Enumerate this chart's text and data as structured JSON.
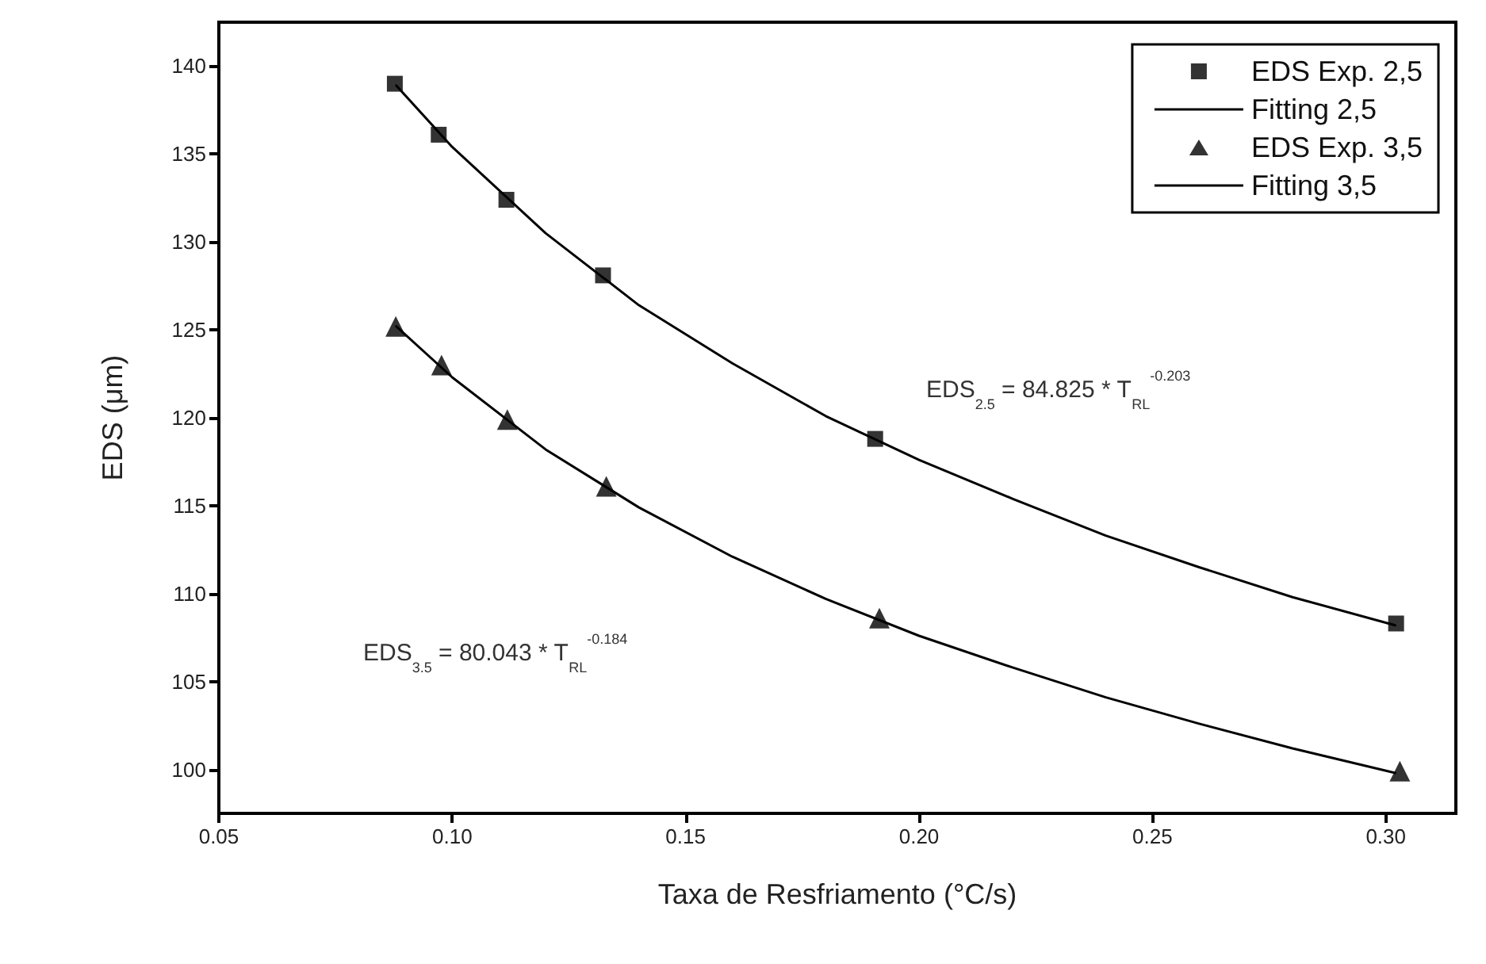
{
  "chart_data": {
    "type": "scatter",
    "xlabel": "Taxa de Resfriamento (°C/s)",
    "ylabel": "EDS (μm)",
    "xlim": [
      0.05,
      0.315
    ],
    "xticks": [
      {
        "value": 0.05,
        "label": "0.05"
      },
      {
        "value": 0.1,
        "label": "0.10"
      },
      {
        "value": 0.15,
        "label": "0.15"
      },
      {
        "value": 0.2,
        "label": "0.20"
      },
      {
        "value": 0.25,
        "label": "0.25"
      },
      {
        "value": 0.3,
        "label": "0.30"
      }
    ],
    "ylim": [
      97.5,
      142.5
    ],
    "yticks": [
      100,
      105,
      110,
      115,
      120,
      125,
      130,
      135,
      140
    ],
    "grid": false,
    "legend": "top right",
    "series": [
      {
        "name": "EDS Exp. 2,5",
        "marker": "square",
        "color": "#000000",
        "x": [
          0.0877,
          0.0971,
          0.1116,
          0.1323,
          0.1906,
          0.3022
        ],
        "values": [
          139.0,
          136.1,
          132.4,
          128.1,
          118.8,
          108.3
        ]
      },
      {
        "name": "Fitting 2,5",
        "type": "line",
        "marker": "none",
        "line_style": "solid",
        "color": "#000000",
        "x": [
          0.088,
          0.1,
          0.12,
          0.14,
          0.16,
          0.18,
          0.2,
          0.22,
          0.24,
          0.26,
          0.28,
          0.302
        ],
        "values": [
          138.9,
          135.4,
          130.5,
          126.4,
          123.1,
          120.1,
          117.6,
          115.4,
          113.3,
          111.5,
          109.8,
          108.2
        ]
      },
      {
        "name": "EDS Exp. 3,5",
        "marker": "triangle",
        "color": "#000000",
        "x": [
          0.0879,
          0.0977,
          0.1118,
          0.133,
          0.1915,
          0.303
        ],
        "values": [
          125.2,
          123.0,
          119.9,
          116.1,
          108.6,
          99.9
        ]
      },
      {
        "name": "Fitting 3,5",
        "type": "line",
        "marker": "none",
        "line_style": "solid",
        "color": "#000000",
        "x": [
          0.088,
          0.1,
          0.12,
          0.14,
          0.16,
          0.18,
          0.2,
          0.22,
          0.24,
          0.26,
          0.28,
          0.302
        ],
        "values": [
          125.2,
          122.3,
          118.2,
          114.9,
          112.1,
          109.7,
          107.6,
          105.8,
          104.1,
          102.6,
          101.2,
          99.8
        ]
      }
    ],
    "annotations": [
      "EDS$_{2.5}$ = 84.825 * T$_{RL}$$^{-0.203}$",
      "EDS$_{3.5}$ = 80.043 * T$_{RL}$$^{-0.184}$"
    ]
  }
}
